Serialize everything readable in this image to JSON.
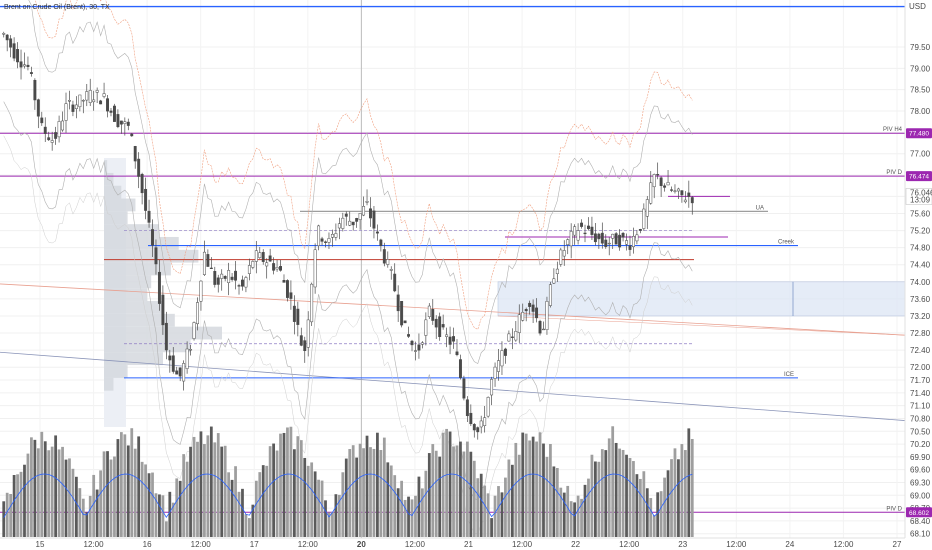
{
  "header": {
    "title": "Brent on Crude Oil (Brent), 30, TX",
    "currency": "USD"
  },
  "chart_data": {
    "type": "candlestick",
    "symbol": "Brent on Crude Oil (Brent)",
    "interval": "30",
    "ylim": [
      68.0,
      80.6
    ],
    "yticks": [
      "79.50",
      "79.00",
      "78.50",
      "78.00",
      "77.50",
      "77.00",
      "76.50",
      "76.00",
      "75.60",
      "75.20",
      "74.80",
      "74.40",
      "74.00",
      "73.60",
      "73.20",
      "72.80",
      "72.40",
      "72.00",
      "71.70",
      "71.40",
      "71.10",
      "70.80",
      "70.50",
      "70.20",
      "69.90",
      "69.60",
      "69.30",
      "69.00",
      "68.70",
      "68.40",
      "68.10"
    ],
    "x_axis_labels": [
      "15",
      "12:00",
      "16",
      "12:00",
      "17",
      "12:00",
      "20",
      "12:00",
      "21",
      "12:00",
      "22",
      "12:00",
      "23",
      "12:00",
      "24",
      "12:00",
      "27"
    ],
    "price_path": [
      79.8,
      79.3,
      79.0,
      77.6,
      77.3,
      78.1,
      78.2,
      78.4,
      78.3,
      77.8,
      77.6,
      76.2,
      74.6,
      72.4,
      71.7,
      72.6,
      74.7,
      73.9,
      74.2,
      73.8,
      74.6,
      74.5,
      74.3,
      73.5,
      72.3,
      75.2,
      74.9,
      75.5,
      75.4,
      75.8,
      74.9,
      74.1,
      72.9,
      72.3,
      73.3,
      72.8,
      72.5,
      71.0,
      70.4,
      71.7,
      72.4,
      73.0,
      73.6,
      72.8,
      74.3,
      74.9,
      75.3,
      75.1,
      74.9,
      75.0,
      74.9,
      75.4,
      76.5,
      76.2,
      76.0,
      76.0
    ],
    "price_badge": {
      "value": "76.046",
      "countdown": "13:09"
    },
    "levels": [
      {
        "name": "PIV H4",
        "value": "77.480",
        "color": "#9c27b0"
      },
      {
        "name": "PIV D",
        "value": "76.474",
        "color": "#9c27b0"
      },
      {
        "name": "UA",
        "value": 75.65,
        "color": "#9e9e9e"
      },
      {
        "name": "Creek",
        "value": 74.85,
        "color": "#2962ff"
      },
      {
        "name": "ICE",
        "value": 71.75,
        "color": "#2962ff"
      },
      {
        "name": "PIV D",
        "value": "68.602",
        "color": "#9c27b0"
      }
    ],
    "red_level": 74.52,
    "dashed_levels": [
      75.2,
      72.55
    ],
    "top_level": 80.4,
    "zone": {
      "from": 73.2,
      "to": 74.0
    },
    "volume_profile": [
      {
        "price": 76.7,
        "vol": 4
      },
      {
        "price": 76.4,
        "vol": 12
      },
      {
        "price": 76.1,
        "vol": 22
      },
      {
        "price": 75.8,
        "vol": 40
      },
      {
        "price": 75.5,
        "vol": 30
      },
      {
        "price": 75.2,
        "vol": 70
      },
      {
        "price": 74.9,
        "vol": 95
      },
      {
        "price": 74.6,
        "vol": 120
      },
      {
        "price": 74.3,
        "vol": 85
      },
      {
        "price": 74.0,
        "vol": 60
      },
      {
        "price": 73.7,
        "vol": 55
      },
      {
        "price": 73.4,
        "vol": 75
      },
      {
        "price": 73.1,
        "vol": 90
      },
      {
        "price": 72.8,
        "vol": 150
      },
      {
        "price": 72.5,
        "vol": 110
      },
      {
        "price": 72.2,
        "vol": 75
      },
      {
        "price": 71.9,
        "vol": 30
      },
      {
        "price": 71.6,
        "vol": 12
      }
    ]
  },
  "colors": {
    "candle": "#4a4a4a",
    "volume": "#9e9e9e",
    "volume_ma": "#2962ff",
    "pivot": "#9c27b0",
    "creek": "#2962ff",
    "red_level": "#c0392b",
    "zone": "#dbe5f5",
    "blue_top": "#2962ff",
    "badge": "#9c27b0",
    "price_badge": "#ffffff"
  }
}
